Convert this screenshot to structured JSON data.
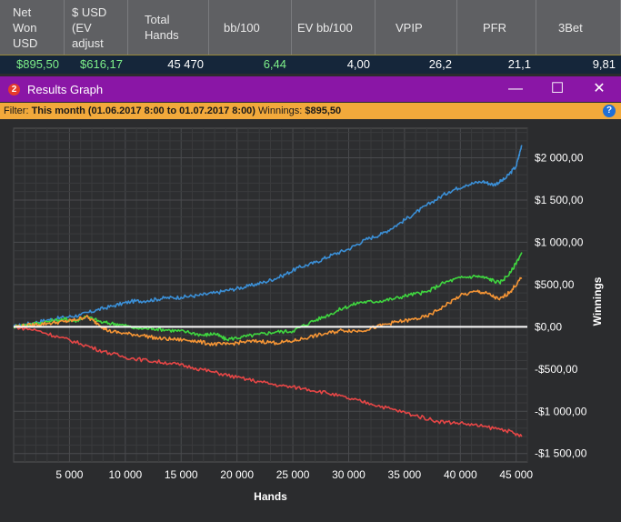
{
  "stats": {
    "headers": [
      {
        "lines": [
          "Net",
          "Won",
          "USD"
        ]
      },
      {
        "lines": [
          "$ USD",
          "(EV",
          "adjust"
        ]
      },
      {
        "lines": [
          "Total",
          "Hands"
        ]
      },
      {
        "lines": [
          "bb/100"
        ]
      },
      {
        "lines": [
          "EV bb/100"
        ]
      },
      {
        "lines": [
          "VPIP"
        ]
      },
      {
        "lines": [
          "PFR"
        ]
      },
      {
        "lines": [
          "3Bet"
        ]
      }
    ],
    "values": [
      "$895,50",
      "$616,17",
      "45 470",
      "6,44",
      "4,00",
      "26,2",
      "21,1",
      "9,81"
    ]
  },
  "window": {
    "badge": "2",
    "title": "Results Graph",
    "minimize": "—",
    "maximize": "☐",
    "close": "✕"
  },
  "filter": {
    "label": "Filter: ",
    "range": "This month (01.06.2017 8:00 to 01.07.2017 8:00)",
    "winnings_label": " Winnings: ",
    "winnings_value": "$895,50",
    "help": "?"
  },
  "chart_data": {
    "type": "line",
    "xlabel": "Hands",
    "ylabel": "Winnings",
    "xlim": [
      0,
      46000
    ],
    "ylim": [
      -1600,
      2350
    ],
    "xticks": [
      5000,
      10000,
      15000,
      20000,
      25000,
      30000,
      35000,
      40000,
      45000
    ],
    "xtick_labels": [
      "5 000",
      "10 000",
      "15 000",
      "20 000",
      "25 000",
      "30 000",
      "35 000",
      "40 000",
      "45 000"
    ],
    "yticks": [
      2000,
      1500,
      1000,
      500,
      0,
      -500,
      -1000,
      -1500
    ],
    "ytick_labels": [
      "$2 000,00",
      "$1 500,00",
      "$1 000,00",
      "$500,00",
      "$0,00",
      "-$500,00",
      "-$1 000,00",
      "-$1 500,00"
    ],
    "grid": true,
    "zero_line": true,
    "series": [
      {
        "color": "#3b8fd6",
        "points": [
          [
            0,
            0
          ],
          [
            1500,
            40
          ],
          [
            3000,
            80
          ],
          [
            4500,
            110
          ],
          [
            6000,
            140
          ],
          [
            7500,
            200
          ],
          [
            9000,
            250
          ],
          [
            10500,
            300
          ],
          [
            12000,
            310
          ],
          [
            13500,
            340
          ],
          [
            15000,
            350
          ],
          [
            16500,
            370
          ],
          [
            18000,
            400
          ],
          [
            19500,
            440
          ],
          [
            21000,
            480
          ],
          [
            22500,
            530
          ],
          [
            24000,
            600
          ],
          [
            25500,
            700
          ],
          [
            27000,
            760
          ],
          [
            28500,
            850
          ],
          [
            30000,
            920
          ],
          [
            31500,
            1030
          ],
          [
            33000,
            1100
          ],
          [
            34500,
            1220
          ],
          [
            36000,
            1350
          ],
          [
            37500,
            1480
          ],
          [
            39000,
            1600
          ],
          [
            40500,
            1680
          ],
          [
            42000,
            1720
          ],
          [
            43000,
            1680
          ],
          [
            44000,
            1750
          ],
          [
            45000,
            1900
          ],
          [
            45500,
            2150
          ]
        ]
      },
      {
        "color": "#3fd63f",
        "points": [
          [
            0,
            0
          ],
          [
            1500,
            30
          ],
          [
            3000,
            60
          ],
          [
            4500,
            90
          ],
          [
            5500,
            70
          ],
          [
            6500,
            120
          ],
          [
            8000,
            50
          ],
          [
            9500,
            30
          ],
          [
            11000,
            -20
          ],
          [
            12500,
            -20
          ],
          [
            14000,
            -40
          ],
          [
            15500,
            -60
          ],
          [
            17000,
            -100
          ],
          [
            18000,
            -80
          ],
          [
            19000,
            -150
          ],
          [
            20500,
            -120
          ],
          [
            22000,
            -90
          ],
          [
            23500,
            -60
          ],
          [
            25000,
            -50
          ],
          [
            26500,
            50
          ],
          [
            28000,
            130
          ],
          [
            29500,
            220
          ],
          [
            31000,
            290
          ],
          [
            32500,
            300
          ],
          [
            34000,
            330
          ],
          [
            35500,
            380
          ],
          [
            37000,
            410
          ],
          [
            38500,
            520
          ],
          [
            40000,
            580
          ],
          [
            41500,
            600
          ],
          [
            42500,
            570
          ],
          [
            43500,
            520
          ],
          [
            44500,
            640
          ],
          [
            45500,
            880
          ]
        ]
      },
      {
        "color": "#f59535",
        "points": [
          [
            0,
            0
          ],
          [
            1500,
            20
          ],
          [
            3000,
            40
          ],
          [
            4500,
            60
          ],
          [
            5500,
            80
          ],
          [
            6500,
            120
          ],
          [
            7500,
            40
          ],
          [
            8500,
            -50
          ],
          [
            10000,
            -80
          ],
          [
            11500,
            -100
          ],
          [
            13000,
            -140
          ],
          [
            14500,
            -150
          ],
          [
            16000,
            -160
          ],
          [
            17500,
            -200
          ],
          [
            19000,
            -210
          ],
          [
            20500,
            -180
          ],
          [
            22000,
            -170
          ],
          [
            23500,
            -190
          ],
          [
            25000,
            -170
          ],
          [
            26500,
            -120
          ],
          [
            28000,
            -80
          ],
          [
            29500,
            -40
          ],
          [
            31000,
            -50
          ],
          [
            32500,
            0
          ],
          [
            34000,
            50
          ],
          [
            35500,
            80
          ],
          [
            37000,
            120
          ],
          [
            38500,
            240
          ],
          [
            40000,
            370
          ],
          [
            41500,
            420
          ],
          [
            42500,
            390
          ],
          [
            43500,
            320
          ],
          [
            44500,
            420
          ],
          [
            45500,
            580
          ]
        ]
      },
      {
        "color": "#e64646",
        "points": [
          [
            0,
            0
          ],
          [
            2000,
            -40
          ],
          [
            4000,
            -120
          ],
          [
            6000,
            -200
          ],
          [
            8000,
            -290
          ],
          [
            10000,
            -360
          ],
          [
            12000,
            -400
          ],
          [
            14000,
            -430
          ],
          [
            16000,
            -480
          ],
          [
            18000,
            -540
          ],
          [
            20000,
            -600
          ],
          [
            22000,
            -650
          ],
          [
            24000,
            -700
          ],
          [
            26000,
            -730
          ],
          [
            28000,
            -780
          ],
          [
            30000,
            -850
          ],
          [
            32000,
            -910
          ],
          [
            34000,
            -980
          ],
          [
            36000,
            -1050
          ],
          [
            38000,
            -1120
          ],
          [
            40000,
            -1140
          ],
          [
            42000,
            -1180
          ],
          [
            44000,
            -1220
          ],
          [
            45500,
            -1300
          ]
        ]
      }
    ]
  }
}
